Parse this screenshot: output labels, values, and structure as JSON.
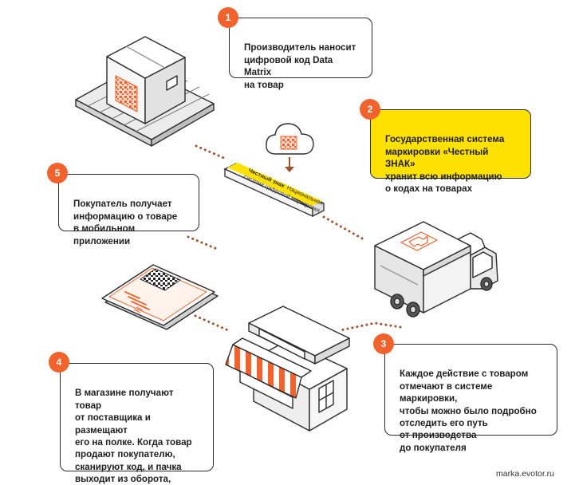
{
  "steps": [
    {
      "number": "1",
      "text": "Производитель наносит\nцифровой код Data Matrix\nна товар"
    },
    {
      "number": "2",
      "text": "Государственная система\nмаркировки «Честный ЗНАК»\nхранит всю информацию\nо кодах на товарах"
    },
    {
      "number": "3",
      "text": "Каждое действие с товаром\nотмечают в системе маркировки,\nчтобы можно было подробно\nотследить его путь\nот производства\nдо покупателя"
    },
    {
      "number": "4",
      "text": "В магазине получают товар\nот поставщика и размещают\nего на полке. Когда товар\nпродают покупателю,\nсканируют код, и пачка\nвыходит из оборота,\nчто отмечается\nв системе маркировки"
    },
    {
      "number": "5",
      "text": "Покупатель получает\nинформацию о товаре\nв мобильном приложении"
    }
  ],
  "system_label": {
    "brand": "Честный знак",
    "rest": "Национальная",
    "line2": "система цифровой маркировки"
  },
  "footer": "marka.evotor.ru",
  "colors": {
    "accent": "#f2622c",
    "highlight": "#ffe100",
    "outline": "#2b2b2b",
    "fill_light": "#f4f4f4"
  },
  "icons": [
    "box-on-conveyor-icon",
    "cloud-data-icon",
    "truck-icon",
    "store-icon",
    "smartphone-icon",
    "qr-code-icon"
  ]
}
